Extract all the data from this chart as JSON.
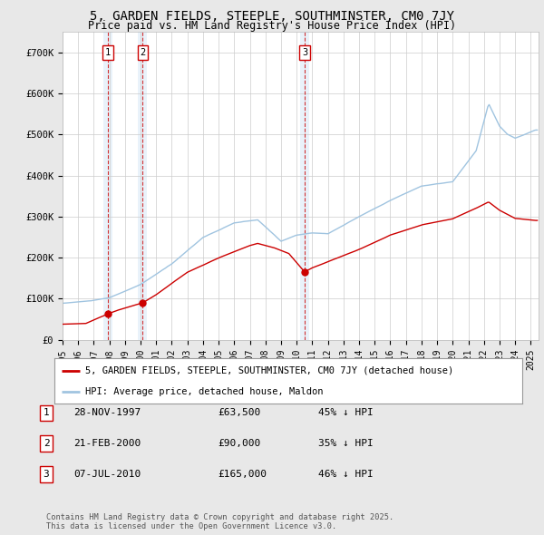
{
  "title": "5, GARDEN FIELDS, STEEPLE, SOUTHMINSTER, CM0 7JY",
  "subtitle": "Price paid vs. HM Land Registry's House Price Index (HPI)",
  "hpi_label": "HPI: Average price, detached house, Maldon",
  "property_label": "5, GARDEN FIELDS, STEEPLE, SOUTHMINSTER, CM0 7JY (detached house)",
  "ylim": [
    0,
    750000
  ],
  "xlim_start": 1995.0,
  "xlim_end": 2025.5,
  "hpi_color": "#a0c4e0",
  "property_color": "#cc0000",
  "dashed_color": "#cc0000",
  "shade_color": "#ddeeff",
  "bg_color": "#e8e8e8",
  "plot_bg": "#ffffff",
  "grid_color": "#cccccc",
  "sales": [
    {
      "date": 1997.91,
      "price": 63500,
      "label": "1"
    },
    {
      "date": 2000.13,
      "price": 90000,
      "label": "2"
    },
    {
      "date": 2010.51,
      "price": 165000,
      "label": "3"
    }
  ],
  "sale_table": [
    {
      "num": "1",
      "date": "28-NOV-1997",
      "price": "£63,500",
      "pct": "45% ↓ HPI"
    },
    {
      "num": "2",
      "date": "21-FEB-2000",
      "price": "£90,000",
      "pct": "35% ↓ HPI"
    },
    {
      "num": "3",
      "date": "07-JUL-2010",
      "price": "£165,000",
      "pct": "46% ↓ HPI"
    }
  ],
  "footer": "Contains HM Land Registry data © Crown copyright and database right 2025.\nThis data is licensed under the Open Government Licence v3.0.",
  "yticks": [
    0,
    100000,
    200000,
    300000,
    400000,
    500000,
    600000,
    700000
  ],
  "ytick_labels": [
    "£0",
    "£100K",
    "£200K",
    "£300K",
    "£400K",
    "£500K",
    "£600K",
    "£700K"
  ]
}
